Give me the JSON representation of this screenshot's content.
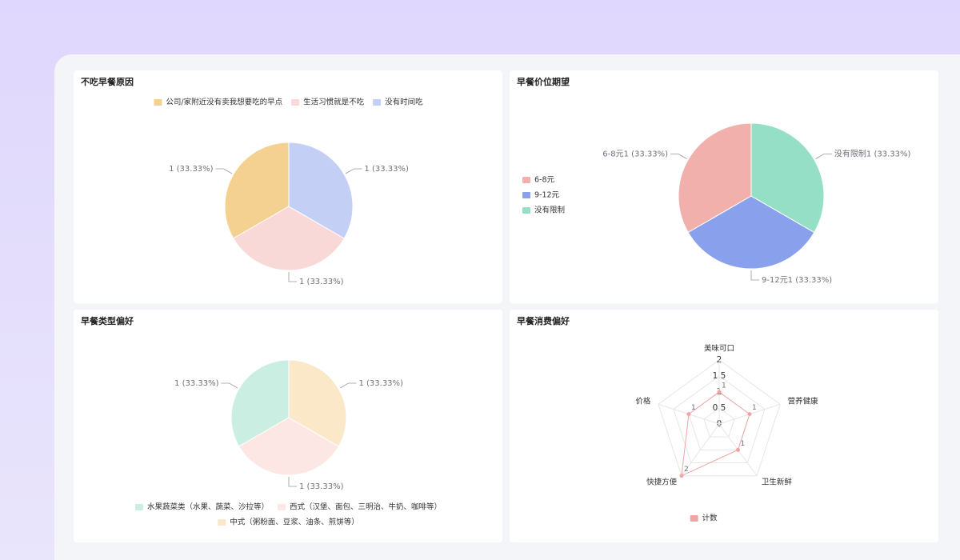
{
  "chart_data": [
    {
      "type": "pie",
      "title": "不吃早餐原因",
      "legend": "top",
      "categories": [
        "公司/家附近没有卖我想要吃的早点",
        "生活习惯就是不吃",
        "没有时间吃"
      ],
      "values": [
        1,
        1,
        1
      ],
      "value_labels": [
        "1 (33.33%)",
        "1 (33.33%)",
        "1 (33.33%)"
      ],
      "colors": [
        "#f4d190",
        "#f8d9d7",
        "#c3cff4"
      ],
      "label_names": false
    },
    {
      "type": "pie",
      "title": "早餐价位期望",
      "legend": "left",
      "categories": [
        "6-8元",
        "9-12元",
        "没有限制"
      ],
      "values": [
        1,
        1,
        1
      ],
      "value_labels": [
        "1 (33.33%)",
        "1 (33.33%)",
        "1 (33.33%)"
      ],
      "colors": [
        "#f2b0ad",
        "#89a1ec",
        "#95dfc7"
      ],
      "label_names": true
    },
    {
      "type": "pie",
      "title": "早餐类型偏好",
      "legend": "bottom",
      "categories": [
        "水果蔬菜类（水果、蔬菜、沙拉等）",
        "西式（汉堡、面包、三明治、牛奶、咖啡等）",
        "中式（粥粉面、豆浆、油条、煎饼等）"
      ],
      "values": [
        1,
        1,
        1
      ],
      "value_labels": [
        "1 (33.33%)",
        "1 (33.33%)",
        "1 (33.33%)"
      ],
      "colors": [
        "#caeee1",
        "#fde7e5",
        "#fae8c9"
      ],
      "label_names": false
    },
    {
      "type": "radar",
      "title": "早餐消费偏好",
      "legend": "bottom",
      "indicators": [
        "美味可口",
        "营养健康",
        "卫生新鲜",
        "快捷方便",
        "价格"
      ],
      "rlim": [
        0,
        2
      ],
      "rticks": [
        0,
        0.5,
        1,
        1.5,
        2
      ],
      "series": [
        {
          "name": "计数",
          "color": "#f0a5a5",
          "values": [
            1,
            1,
            1,
            2,
            1
          ]
        }
      ]
    }
  ]
}
